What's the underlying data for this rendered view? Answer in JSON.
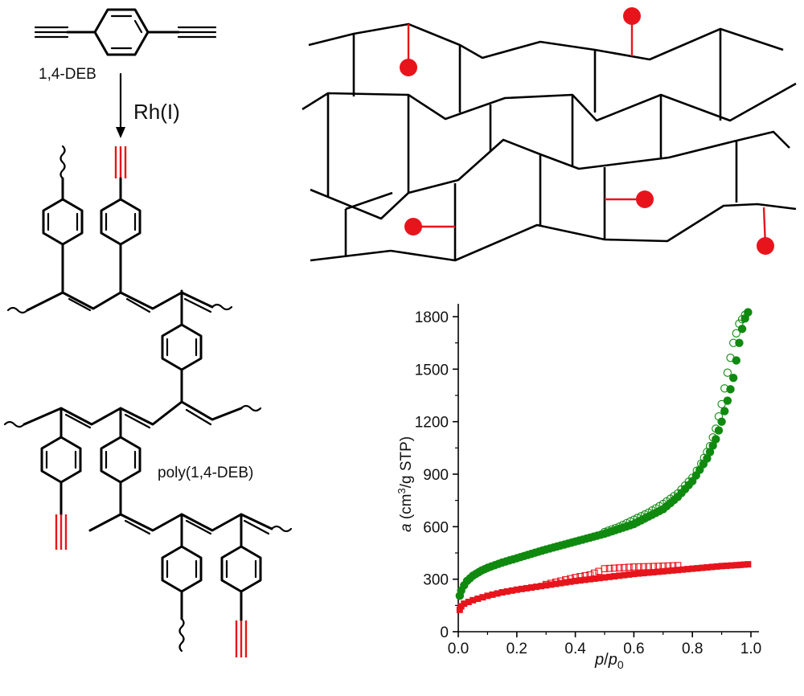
{
  "scheme": {
    "monomer_label": "1,4-DEB",
    "catalyst_label": "Rh(I)",
    "polymer_label": "poly(1,4-DEB)"
  },
  "colors": {
    "line": "#000000",
    "accent_red": "#e8141c",
    "series_green": "#0f8a0f",
    "series_red": "#e8141c"
  },
  "chart_data": {
    "type": "scatter",
    "title": "",
    "xlabel_italic": "p",
    "xlabel_sep": "/",
    "xlabel_sub_base": "p",
    "xlabel_sub": "0",
    "ylabel_italic": "a",
    "ylabel_pre": " (cm",
    "ylabel_sup": "3",
    "ylabel_post": "/g STP)",
    "xlim": [
      0,
      1.0
    ],
    "ylim": [
      0,
      1850
    ],
    "xticks": [
      "0.0",
      "0.2",
      "0.4",
      "0.6",
      "0.8",
      "1.0"
    ],
    "yticks": [
      "0",
      "300",
      "600",
      "900",
      "1200",
      "1500",
      "1800"
    ],
    "xtick_values": [
      0,
      0.2,
      0.4,
      0.6,
      0.8,
      1.0
    ],
    "ytick_values": [
      0,
      300,
      600,
      900,
      1200,
      1500,
      1800
    ],
    "series": [
      {
        "marker": "filled-circle",
        "color": "#0f8a0f",
        "x": [
          0.005,
          0.01,
          0.02,
          0.03,
          0.05,
          0.08,
          0.1,
          0.15,
          0.2,
          0.3,
          0.4,
          0.5,
          0.6,
          0.7,
          0.75,
          0.8,
          0.85,
          0.88,
          0.9,
          0.92,
          0.94,
          0.95,
          0.96,
          0.97,
          0.98,
          0.99
        ],
        "y": [
          205,
          235,
          265,
          290,
          320,
          350,
          365,
          395,
          420,
          470,
          515,
          560,
          615,
          700,
          770,
          860,
          990,
          1100,
          1200,
          1320,
          1450,
          1550,
          1650,
          1730,
          1790,
          1825
        ]
      },
      {
        "marker": "open-circle",
        "color": "#0f8a0f",
        "x": [
          0.5,
          0.55,
          0.6,
          0.65,
          0.7,
          0.75,
          0.8,
          0.83,
          0.86,
          0.88,
          0.9,
          0.92,
          0.94,
          0.96,
          0.98,
          0.99
        ],
        "y": [
          570,
          600,
          640,
          680,
          730,
          790,
          880,
          960,
          1060,
          1160,
          1300,
          1480,
          1650,
          1760,
          1810,
          1825
        ]
      },
      {
        "marker": "filled-square",
        "color": "#e8141c",
        "x": [
          0.005,
          0.01,
          0.02,
          0.05,
          0.1,
          0.15,
          0.2,
          0.3,
          0.4,
          0.5,
          0.6,
          0.7,
          0.8,
          0.9,
          0.95,
          0.99
        ],
        "y": [
          125,
          145,
          160,
          180,
          205,
          225,
          240,
          265,
          290,
          310,
          330,
          345,
          360,
          375,
          380,
          385
        ]
      },
      {
        "marker": "open-square",
        "color": "#e8141c",
        "x": [
          0.3,
          0.35,
          0.4,
          0.45,
          0.48,
          0.5,
          0.55,
          0.6,
          0.65,
          0.7,
          0.75
        ],
        "y": [
          270,
          290,
          310,
          325,
          345,
          360,
          365,
          370,
          372,
          375,
          378
        ]
      }
    ]
  }
}
